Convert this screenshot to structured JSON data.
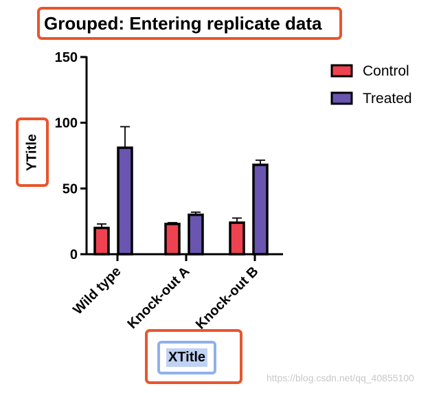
{
  "chart_data": {
    "type": "bar",
    "title": "Grouped: Entering replicate data",
    "xlabel": "XTitle",
    "ylabel": "YTitle",
    "categories": [
      "Wild type",
      "Knock-out A",
      "Knock-out B"
    ],
    "series": [
      {
        "name": "Control",
        "color": "#ee4250",
        "values": [
          20,
          23,
          24
        ],
        "errors": [
          3,
          1,
          3.5
        ]
      },
      {
        "name": "Treated",
        "color": "#6a55b0",
        "values": [
          81,
          30,
          68
        ],
        "errors": [
          16,
          2,
          3.5
        ]
      }
    ],
    "ylim": [
      0,
      150
    ],
    "yticks": [
      "0",
      "50",
      "100",
      "150"
    ],
    "grid": false,
    "legend_position": "top-right",
    "annotation_color": "#e8552d",
    "selection_color": "#8fb1ea"
  },
  "watermark": "https://blog.csdn.net/qq_40855100"
}
